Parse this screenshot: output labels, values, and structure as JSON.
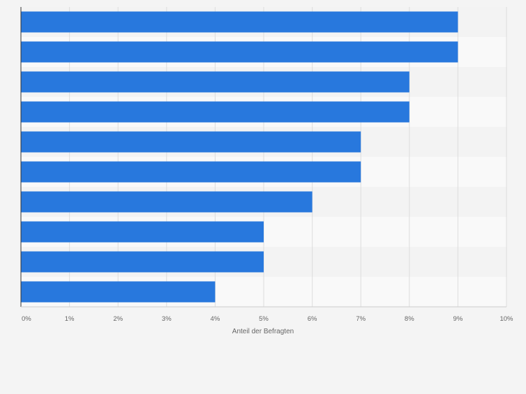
{
  "chart_data": {
    "type": "bar",
    "orientation": "horizontal",
    "categories": [
      "",
      "",
      "",
      "",
      "",
      "",
      "",
      "",
      "",
      ""
    ],
    "values": [
      9,
      9,
      8,
      8,
      7,
      7,
      6,
      5,
      5,
      4
    ],
    "unit": "%",
    "xlabel": "Anteil der Befragten",
    "ylabel": "",
    "xlim": [
      0,
      10
    ],
    "xticks": [
      "0%",
      "1%",
      "2%",
      "3%",
      "4%",
      "5%",
      "6%",
      "7%",
      "8%",
      "9%",
      "10%"
    ],
    "grid": "vertical",
    "legend": "none",
    "colors": {
      "bar": "#2878dd",
      "band_dark": "#f3f3f3",
      "band_light": "#f9f9f9",
      "grid": "#dddddd",
      "axis": "#333333",
      "tick_text": "#666666"
    }
  }
}
